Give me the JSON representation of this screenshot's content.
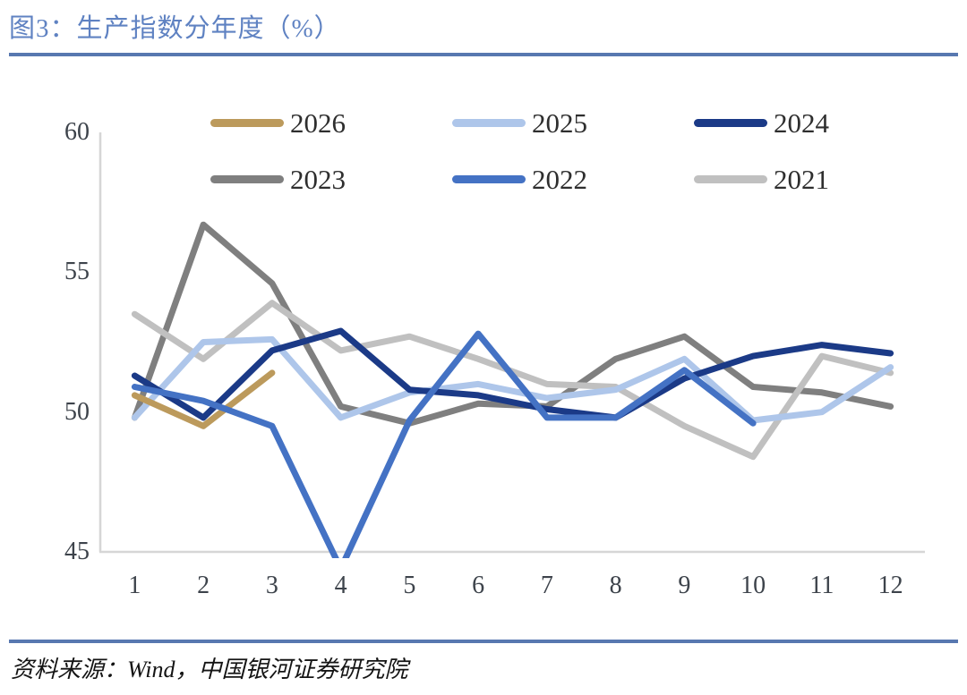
{
  "header": {
    "title": "图3：生产指数分年度（%）"
  },
  "footer": {
    "source": "资料来源：Wind，中国银河证券研究院"
  },
  "colors": {
    "title": "#5F82C2",
    "rule": "#5878B0",
    "axis_line": "#D6D6D6",
    "tick_label": "#3D434B",
    "legend_label": "#2E2E2E",
    "source_text": "#141414",
    "background": "#FFFFFF"
  },
  "chart_data": {
    "type": "line",
    "title": "生产指数分年度（%）",
    "categories": [
      1,
      2,
      3,
      4,
      5,
      6,
      7,
      8,
      9,
      10,
      11,
      12
    ],
    "ylim": [
      45,
      60
    ],
    "yticks": [
      45,
      50,
      55,
      60
    ],
    "grid": false,
    "legend_position": "top",
    "legend_rows": [
      [
        "2026",
        "2025",
        "2024"
      ],
      [
        "2023",
        "2022",
        "2021"
      ]
    ],
    "draw_order": [
      "2023",
      "2021",
      "2025",
      "2026",
      "2024",
      "2022"
    ],
    "series": [
      {
        "name": "2026",
        "color": "#BC9A5C",
        "values": [
          50.6,
          49.5,
          51.4,
          null,
          null,
          null,
          null,
          null,
          null,
          null,
          null,
          null
        ]
      },
      {
        "name": "2025",
        "color": "#AEC6EA",
        "values": [
          49.8,
          52.5,
          52.6,
          49.8,
          50.7,
          51.0,
          50.5,
          50.8,
          51.9,
          49.7,
          50.0,
          51.6
        ]
      },
      {
        "name": "2024",
        "color": "#1B3A87",
        "values": [
          51.3,
          49.8,
          52.2,
          52.9,
          50.8,
          50.6,
          50.1,
          49.8,
          51.2,
          52.0,
          52.4,
          52.1
        ]
      },
      {
        "name": "2023",
        "color": "#7F7F7F",
        "values": [
          49.8,
          56.7,
          54.6,
          50.2,
          49.6,
          50.3,
          50.2,
          51.9,
          52.7,
          50.9,
          50.7,
          50.2
        ]
      },
      {
        "name": "2022",
        "color": "#4472C4",
        "values": [
          50.9,
          50.4,
          49.5,
          44.4,
          49.7,
          52.8,
          49.8,
          49.8,
          51.5,
          49.6,
          null,
          null
        ]
      },
      {
        "name": "2021",
        "color": "#C0C0C0",
        "values": [
          53.5,
          51.9,
          53.9,
          52.2,
          52.7,
          51.9,
          51.0,
          50.9,
          49.5,
          48.4,
          52.0,
          51.4
        ]
      }
    ]
  }
}
